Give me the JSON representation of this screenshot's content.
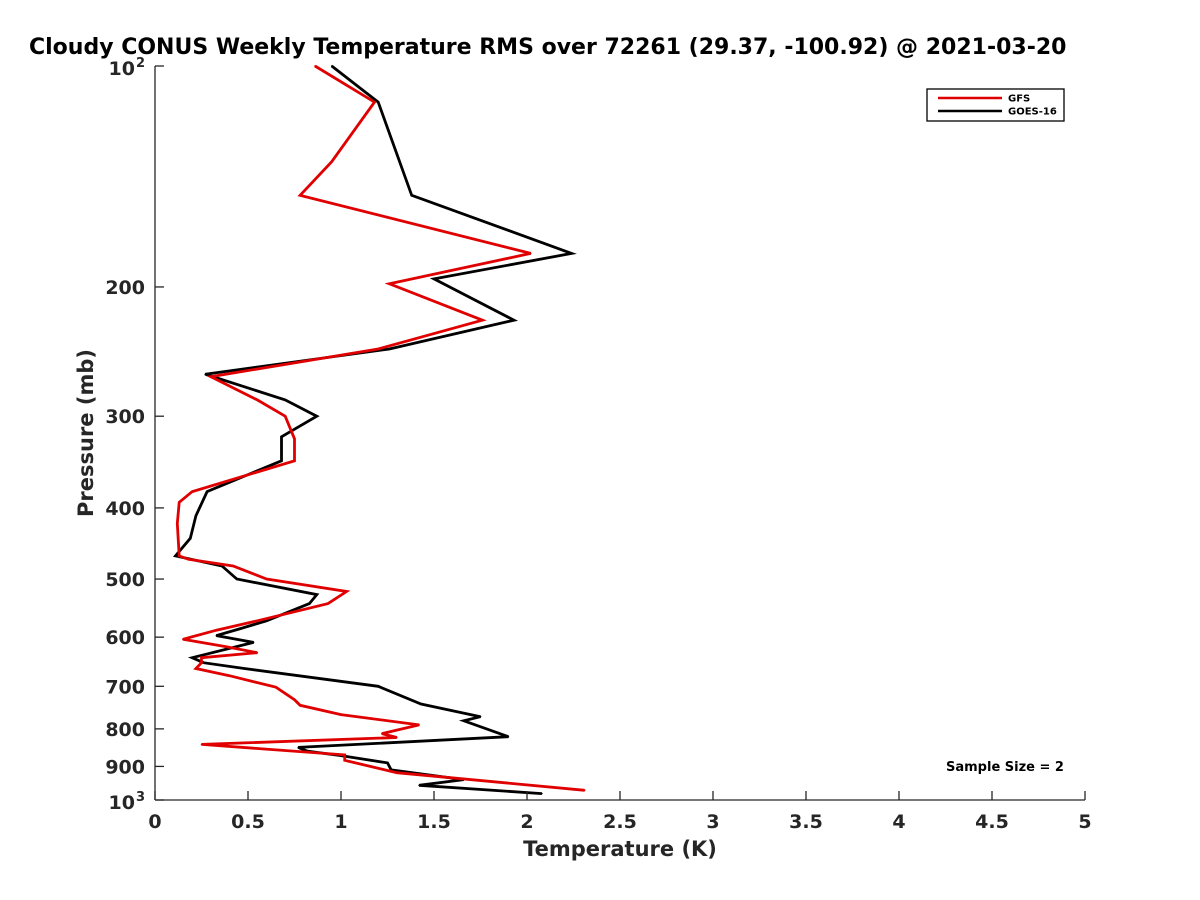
{
  "chart_data": {
    "type": "line",
    "title": "Cloudy CONUS Weekly Temperature RMS over 72261 (29.37, -100.92) @ 2021-03-20",
    "xlabel": "Temperature (K)",
    "ylabel": "Pressure (mb)",
    "xlim": [
      0,
      5
    ],
    "ylim": [
      100,
      1000
    ],
    "yscale": "log",
    "y_reversed": true,
    "x_ticks": [
      0,
      0.5,
      1,
      1.5,
      2,
      2.5,
      3,
      3.5,
      4,
      4.5,
      5
    ],
    "x_tick_labels": [
      "0",
      "0.5",
      "1",
      "1.5",
      "2",
      "2.5",
      "3",
      "3.5",
      "4",
      "4.5",
      "5"
    ],
    "y_ticks": [
      200,
      300,
      400,
      500,
      600,
      700,
      800,
      900
    ],
    "y_tick_labels": [
      "200",
      "300",
      "400",
      "500",
      "600",
      "700",
      "800",
      "900"
    ],
    "y_end_ticks": [
      {
        "value": 100,
        "base": "10",
        "exp": "2"
      },
      {
        "value": 1000,
        "base": "10",
        "exp": "3"
      }
    ],
    "legend_position": "top-right",
    "annotation": "Sample Size = 2",
    "series": [
      {
        "name": "GFS",
        "color": "#e00000",
        "x": [
          0.86,
          1.18,
          0.95,
          0.78,
          2.02,
          1.26,
          1.76,
          1.2,
          0.3,
          0.55,
          0.7,
          0.75,
          0.75,
          0.2,
          0.13,
          0.12,
          0.13,
          0.18,
          0.42,
          0.6,
          1.03,
          0.93,
          0.55,
          0.33,
          0.15,
          0.38,
          0.55,
          0.25,
          0.25,
          0.22,
          0.4,
          0.65,
          0.75,
          0.78,
          1.0,
          1.42,
          1.22,
          1.3,
          0.25,
          1.02,
          1.02,
          1.3,
          2.31
        ],
        "y": [
          100,
          112,
          135,
          150,
          180,
          198,
          222,
          243,
          265,
          285,
          300,
          322,
          345,
          380,
          393,
          420,
          465,
          470,
          480,
          500,
          520,
          540,
          570,
          587,
          604,
          618,
          630,
          640,
          650,
          662,
          677,
          702,
          730,
          743,
          765,
          790,
          812,
          822,
          840,
          868,
          883,
          918,
          970
        ]
      },
      {
        "name": "GOES-16",
        "color": "#000000",
        "x": [
          0.95,
          1.2,
          1.38,
          2.24,
          1.5,
          1.93,
          1.26,
          0.27,
          0.7,
          0.87,
          0.68,
          0.68,
          0.28,
          0.22,
          0.19,
          0.11,
          0.36,
          0.44,
          0.87,
          0.83,
          0.6,
          0.45,
          0.33,
          0.53,
          0.2,
          0.26,
          0.48,
          1.2,
          1.43,
          1.75,
          1.66,
          1.9,
          0.77,
          0.82,
          1.0,
          1.25,
          1.27,
          1.66,
          1.42,
          2.08
        ],
        "y": [
          100,
          112,
          150,
          180,
          195,
          222,
          243,
          263,
          285,
          300,
          320,
          345,
          380,
          410,
          440,
          465,
          480,
          500,
          525,
          540,
          570,
          585,
          597,
          610,
          640,
          650,
          662,
          700,
          740,
          770,
          780,
          820,
          848,
          858,
          870,
          890,
          910,
          938,
          955,
          980
        ]
      }
    ]
  }
}
